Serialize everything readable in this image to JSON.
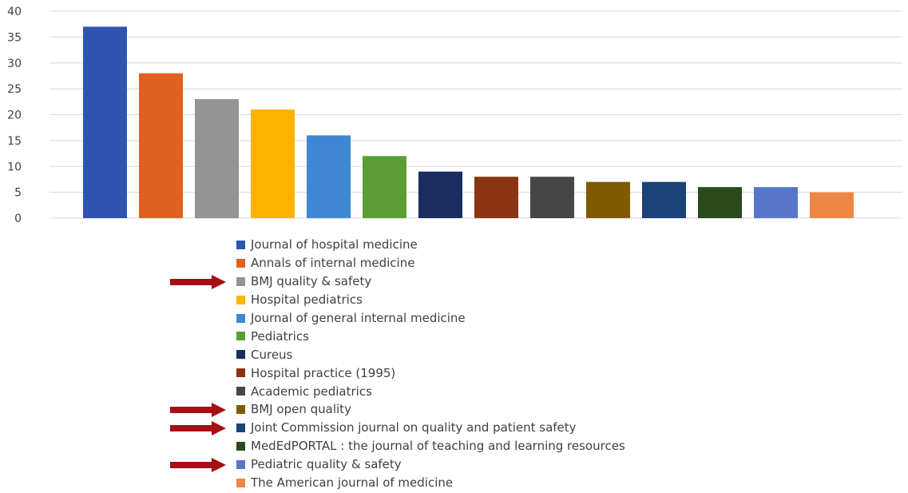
{
  "colors": {
    "grid": "#d9d9d9",
    "axis_text": "#404040",
    "arrow": "#a50f15"
  },
  "chart_data": {
    "type": "bar",
    "title": "",
    "xlabel": "",
    "ylabel": "",
    "ylim": [
      0,
      40
    ],
    "yticks": [
      "0",
      "5",
      "10",
      "15",
      "20",
      "25",
      "30",
      "35",
      "40"
    ],
    "grid": true,
    "legend_placement": "bottom",
    "series": [
      {
        "name": "Journal of hospital medicine",
        "value": 37,
        "color": "#2e54b1",
        "arrow": false
      },
      {
        "name": "Annals of internal medicine",
        "value": 28,
        "color": "#e2601f",
        "arrow": false
      },
      {
        "name": "BMJ quality & safety",
        "value": 23,
        "color": "#939393",
        "arrow": true
      },
      {
        "name": "Hospital pediatrics",
        "value": 21,
        "color": "#fbb300",
        "arrow": false
      },
      {
        "name": "Journal of general internal medicine",
        "value": 16,
        "color": "#3f87d3",
        "arrow": false
      },
      {
        "name": "Pediatrics",
        "value": 12,
        "color": "#5b9e33",
        "arrow": false
      },
      {
        "name": "Cureus",
        "value": 9,
        "color": "#1b2c60",
        "arrow": false
      },
      {
        "name": "Hospital practice (1995)",
        "value": 8,
        "color": "#8a3412",
        "arrow": false
      },
      {
        "name": "Academic pediatrics",
        "value": 8,
        "color": "#464646",
        "arrow": false
      },
      {
        "name": "BMJ open quality",
        "value": 7,
        "color": "#7f5a00",
        "arrow": true
      },
      {
        "name": "Joint Commission journal on quality and patient safety",
        "value": 7,
        "color": "#1b4378",
        "arrow": true
      },
      {
        "name": "MedEdPORTAL : the journal of teaching and learning resources",
        "value": 6,
        "color": "#2b4a1c",
        "arrow": false
      },
      {
        "name": "Pediatric quality & safety",
        "value": 6,
        "color": "#5677c8",
        "arrow": true
      },
      {
        "name": "The American journal of medicine",
        "value": 5,
        "color": "#ef8744",
        "arrow": false
      }
    ]
  }
}
